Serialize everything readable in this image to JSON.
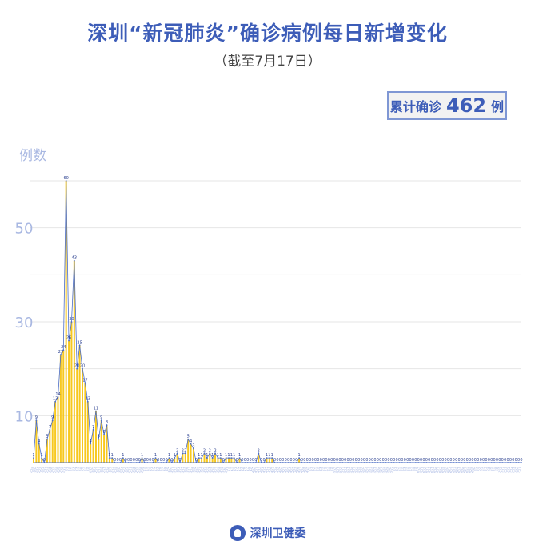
{
  "title": "深圳“新冠肺炎”确诊病例每日新增变化",
  "subtitle": "（截至7月17日）",
  "badge": {
    "prefix": "累计确诊",
    "value": "462",
    "suffix": "例"
  },
  "footer": {
    "org": "深圳卫健委",
    "logo_icon": "shenzhen-health-logo"
  },
  "colors": {
    "title": "#3d5db8",
    "bar": "#f7c81e",
    "line": "#4a6cc6",
    "axis_label": "#a9b8e2"
  },
  "chart_data": {
    "type": "bar",
    "title": "深圳“新冠肺炎”确诊病例每日新增变化",
    "ylabel": "例数",
    "ylim": [
      0,
      60
    ],
    "yticks": [
      10,
      30,
      50
    ],
    "grid": true,
    "overlay_line": true,
    "categories": [
      "1/19",
      "1/20",
      "1/21",
      "1/22",
      "1/23",
      "1/24",
      "1/25",
      "1/26",
      "1/27",
      "1/28",
      "1/29",
      "1/30",
      "1/31",
      "2/1",
      "2/2",
      "2/3",
      "2/4",
      "2/5",
      "2/6",
      "2/7",
      "2/8",
      "2/9",
      "2/10",
      "2/11",
      "2/12",
      "2/13",
      "2/14",
      "2/15",
      "2/16",
      "2/17",
      "2/18",
      "2/19",
      "2/20",
      "2/21",
      "2/22",
      "2/23",
      "2/24",
      "2/25",
      "2/26",
      "2/27",
      "2/28",
      "2/29",
      "3/1",
      "3/2",
      "3/3",
      "3/4",
      "3/5",
      "3/6",
      "3/7",
      "3/8",
      "3/9",
      "3/10",
      "3/11",
      "3/12",
      "3/13",
      "3/14",
      "3/15",
      "3/16",
      "3/17",
      "3/18",
      "3/19",
      "3/20",
      "3/21",
      "3/22",
      "3/23",
      "3/24",
      "3/25",
      "3/26",
      "3/27",
      "3/28",
      "3/29",
      "3/30",
      "3/31",
      "4/1",
      "4/2",
      "4/3",
      "4/4",
      "4/5",
      "4/6",
      "4/7",
      "4/8",
      "4/9",
      "4/10",
      "4/11",
      "4/12",
      "4/13",
      "4/14",
      "4/15",
      "4/16",
      "4/17",
      "4/18",
      "4/19",
      "4/20",
      "4/21",
      "4/22",
      "4/23",
      "4/24",
      "4/25",
      "4/26",
      "4/27",
      "4/28",
      "4/29",
      "4/30",
      "5/1",
      "5/2",
      "5/3",
      "5/4",
      "5/5",
      "5/6",
      "5/7",
      "5/8",
      "5/9",
      "5/10",
      "5/11",
      "5/12",
      "5/13",
      "5/14",
      "5/15",
      "5/16",
      "5/17",
      "5/18",
      "5/19",
      "5/20",
      "5/21",
      "5/22",
      "5/23",
      "5/24",
      "5/25",
      "5/26",
      "5/27",
      "5/28",
      "5/29",
      "5/30",
      "5/31",
      "6/1",
      "6/2",
      "6/3",
      "6/4",
      "6/5",
      "6/6",
      "6/7",
      "6/8",
      "6/9",
      "6/10",
      "6/11",
      "6/12",
      "6/13",
      "6/14",
      "6/15",
      "6/16",
      "6/17",
      "6/18",
      "6/19",
      "6/20",
      "6/21",
      "6/22",
      "6/23",
      "6/24",
      "6/25",
      "6/26",
      "6/27",
      "6/28",
      "6/29",
      "6/30",
      "7/1",
      "7/2",
      "7/3",
      "7/4",
      "7/5",
      "7/6",
      "7/7",
      "7/8",
      "7/9",
      "7/10",
      "7/11",
      "7/12",
      "7/13",
      "7/14",
      "7/15",
      "7/16",
      "7/17"
    ],
    "values": [
      1,
      9,
      4,
      1,
      0,
      5,
      7,
      9,
      13,
      14,
      23,
      24,
      60,
      26,
      30,
      43,
      20,
      25,
      20,
      17,
      13,
      4,
      7,
      11,
      5,
      9,
      6,
      8,
      1,
      1,
      0,
      0,
      0,
      1,
      0,
      0,
      0,
      0,
      0,
      0,
      1,
      0,
      0,
      0,
      0,
      1,
      0,
      0,
      0,
      0,
      1,
      0,
      1,
      2,
      0,
      2,
      2,
      5,
      4,
      3,
      0,
      1,
      1,
      2,
      1,
      2,
      1,
      2,
      1,
      1,
      0,
      1,
      1,
      1,
      1,
      0,
      1,
      0,
      0,
      0,
      0,
      0,
      0,
      2,
      0,
      0,
      1,
      1,
      1,
      0,
      0,
      0,
      0,
      0,
      0,
      0,
      0,
      0,
      1,
      0,
      0,
      0,
      0,
      0,
      0,
      0,
      0,
      0,
      0,
      0,
      0,
      0,
      0,
      0,
      0,
      0,
      0,
      0,
      0,
      0,
      0,
      0,
      0,
      0,
      0,
      0,
      0,
      0,
      0,
      0,
      0,
      0,
      0,
      0,
      0,
      0,
      0,
      0,
      0,
      0,
      0,
      0,
      0,
      0,
      0,
      0,
      0,
      0,
      0,
      0,
      0,
      0,
      0,
      0,
      0,
      0,
      0,
      0,
      0,
      0,
      0,
      0,
      0,
      0,
      0,
      0,
      0,
      0,
      0,
      0,
      0,
      0,
      0,
      0,
      0,
      0,
      0,
      0,
      0,
      0,
      0
    ]
  }
}
